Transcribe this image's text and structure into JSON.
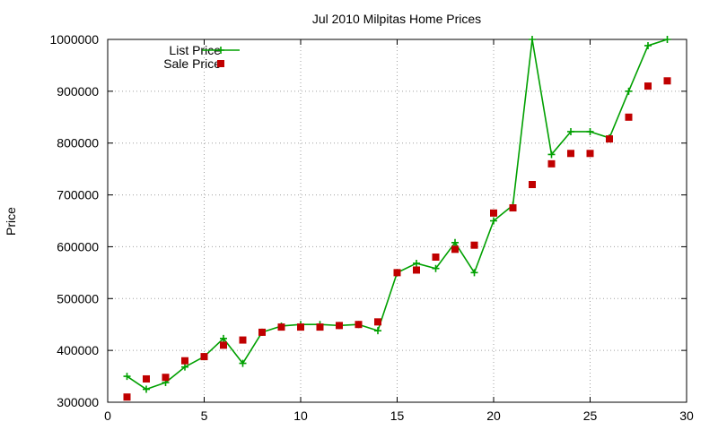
{
  "chart_data": {
    "type": "line",
    "title": "Jul 2010 Milpitas Home Prices",
    "xlabel": "",
    "ylabel": "Price",
    "xlim": [
      0,
      30
    ],
    "ylim": [
      300000,
      1000000
    ],
    "xticks": [
      "0",
      "5",
      "10",
      "15",
      "20",
      "25",
      "30"
    ],
    "xtick_values": [
      0,
      5,
      10,
      15,
      20,
      25,
      30
    ],
    "yticks": [
      "300000",
      "400000",
      "500000",
      "600000",
      "700000",
      "800000",
      "900000",
      "1000000"
    ],
    "ytick_values": [
      300000,
      400000,
      500000,
      600000,
      700000,
      800000,
      900000,
      1000000
    ],
    "grid": true,
    "legend_position": "top-left",
    "series": [
      {
        "name": "List Price",
        "style": "linespoints",
        "marker": "plus",
        "color": "#00a000",
        "x": [
          1,
          2,
          3,
          4,
          5,
          6,
          7,
          8,
          9,
          10,
          11,
          12,
          13,
          14,
          15,
          16,
          17,
          18,
          19,
          20,
          21,
          22,
          23,
          24,
          25,
          26,
          27,
          28,
          29
        ],
        "y": [
          350000,
          325000,
          338000,
          368000,
          388000,
          423000,
          375000,
          435000,
          447000,
          450000,
          450000,
          448000,
          450000,
          438000,
          550000,
          568000,
          558000,
          608000,
          550000,
          650000,
          680000,
          1000000,
          778000,
          822000,
          822000,
          810000,
          900000,
          988000,
          1000000
        ]
      },
      {
        "name": "Sale Price",
        "style": "points",
        "marker": "square",
        "color": "#c00000",
        "x": [
          1,
          2,
          3,
          4,
          5,
          6,
          7,
          8,
          9,
          10,
          11,
          12,
          13,
          14,
          15,
          16,
          17,
          18,
          19,
          20,
          21,
          22,
          23,
          24,
          25,
          26,
          27,
          28,
          29
        ],
        "y": [
          310000,
          345000,
          348000,
          380000,
          388000,
          410000,
          420000,
          435000,
          445000,
          445000,
          445000,
          448000,
          450000,
          455000,
          550000,
          555000,
          580000,
          595000,
          603000,
          665000,
          675000,
          720000,
          760000,
          780000,
          780000,
          808000,
          850000,
          910000,
          920000
        ]
      }
    ]
  }
}
